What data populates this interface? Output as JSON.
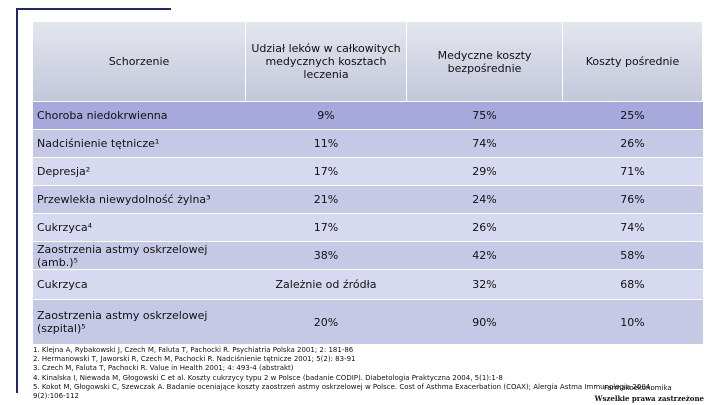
{
  "header": {
    "columns": [
      "Schorzenie",
      "Udział leków w całkowitych medycznych kosztach leczenia",
      "Medyczne koszty bezpośrednie",
      "Koszty pośrednie"
    ]
  },
  "table": {
    "rows": [
      [
        "Choroba niedokrwienna",
        "9%",
        "75%",
        "25%"
      ],
      [
        "Nadciśnienie tętnicze¹",
        "11%",
        "74%",
        "26%"
      ],
      [
        "Depresja²",
        "17%",
        "29%",
        "71%"
      ],
      [
        "Przewlekła niewydolność żylna³",
        "21%",
        "24%",
        "76%"
      ],
      [
        "Cukrzyca⁴",
        "17%",
        "26%",
        "74%"
      ],
      [
        "Zaostrzenia astmy oskrzelowej (amb.)⁵",
        "38%",
        "42%",
        "58%"
      ],
      [
        "Cukrzyca",
        "Zależnie od źródła",
        "32%",
        "68%"
      ],
      [
        "Zaostrzenia astmy oskrzelowej (szpital)⁵",
        "20%",
        "90%",
        "10%"
      ]
    ]
  },
  "footnotes": [
    "1. Klejna A, Rybakowski J, Czech M, Faluta T, Pachocki R. Psychiatria Polska 2001; 2: 181-86",
    "2. Hermanowski T, Jaworski R, Czech M, Pachocki R. Nadciśnienie tętnicze 2001; 5(2): 83-91",
    "3. Czech M, Faluta T, Pachocki R. Value in Health 2001; 4: 493-4 (abstrakt)",
    "4. Kinalska I, Niewada M, Głogowski C et al. Koszty cukrzycy typu 2 w Polsce (badanie CODIP). Diabetologia Praktyczna 2004, 5(1):1-8",
    "5. Kokot M, Głogowski C, Szewczak A. Badanie oceniające koszty zaostrzeń astmy oskrzelowej w Polsce. Cost of Asthma Exacerbation (COAX); Alergia Astma Immunologia 2004,",
    "9(2):106-112"
  ],
  "overlap_label": "Farmakoekonomika",
  "rights": "Wszelkie prawa zastrzeżone"
}
